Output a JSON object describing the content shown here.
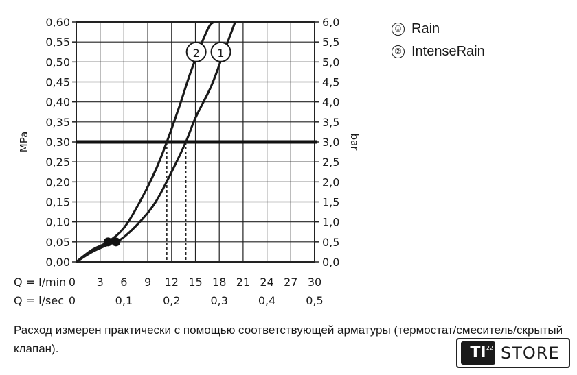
{
  "chart_data": {
    "type": "line",
    "ylabel": "MPa",
    "y2label": "bar",
    "ylim": [
      0,
      0.6
    ],
    "y_ticks": [
      "0,00",
      "0,05",
      "0,10",
      "0,15",
      "0,20",
      "0,25",
      "0,30",
      "0,35",
      "0,40",
      "0,45",
      "0,50",
      "0,55",
      "0,60"
    ],
    "y2_ticks": [
      "0,0",
      "0,5",
      "1,0",
      "1,5",
      "2,0",
      "2,5",
      "3,0",
      "3,5",
      "4,0",
      "4,5",
      "5,0",
      "5,5",
      "6,0"
    ],
    "x_row1_label": "Q = l/min",
    "x_row1_ticks": [
      "0",
      "3",
      "6",
      "9",
      "12",
      "15",
      "18",
      "21",
      "24",
      "27",
      "30"
    ],
    "x_row2_label": "Q = l/sec",
    "x_row2_ticks": [
      "0",
      "0,1",
      "0,2",
      "0,3",
      "0,4",
      "0,5"
    ],
    "xlim": [
      0,
      30
    ],
    "reference_line": 0.3,
    "series": [
      {
        "name": "Rain",
        "marker": "1",
        "x": [
          0,
          2,
          4,
          5,
          6,
          8,
          10,
          12,
          13.8,
          15,
          17,
          18.5,
          20
        ],
        "y": [
          0,
          0.025,
          0.043,
          0.05,
          0.062,
          0.1,
          0.15,
          0.225,
          0.3,
          0.36,
          0.44,
          0.52,
          0.6
        ],
        "dot": [
          5,
          0.05
        ]
      },
      {
        "name": "IntenseRain",
        "marker": "2",
        "x": [
          0,
          2,
          4,
          6,
          8,
          10,
          11.4,
          13,
          14.5,
          16.5,
          17.3
        ],
        "y": [
          0,
          0.03,
          0.05,
          0.085,
          0.15,
          0.23,
          0.3,
          0.39,
          0.48,
          0.58,
          0.6
        ],
        "dot": [
          4,
          0.05
        ]
      }
    ]
  },
  "legend": {
    "items": [
      {
        "marker": "①",
        "label": "Rain"
      },
      {
        "marker": "②",
        "label": "IntenseRain"
      }
    ]
  },
  "caption": "Расход измерен практически с помощью соответствующей арматуры (термостат/смеситель/скрытый клапан).",
  "logo": {
    "mark": "TI",
    "sup": "22",
    "text": "STORE"
  }
}
